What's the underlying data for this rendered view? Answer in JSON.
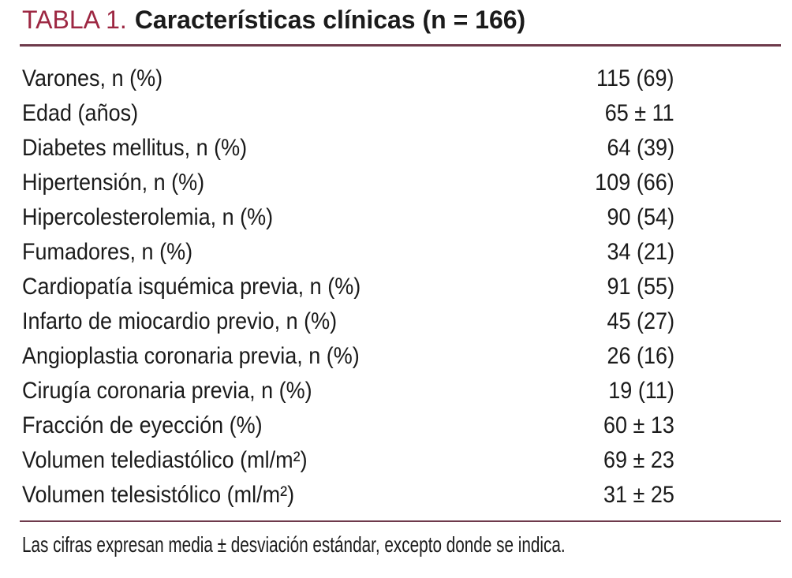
{
  "title": {
    "label": "TABLA 1.",
    "text": "Características clínicas (n = 166)"
  },
  "table": {
    "rows": [
      {
        "label": "Varones, n (%)",
        "value": "115 (69)"
      },
      {
        "label": "Edad (años)",
        "value": "65 ± 11"
      },
      {
        "label": "Diabetes mellitus, n (%)",
        "value": "64 (39)"
      },
      {
        "label": "Hipertensión, n (%)",
        "value": "109 (66)"
      },
      {
        "label": "Hipercolesterolemia, n (%)",
        "value": "90 (54)"
      },
      {
        "label": "Fumadores, n (%)",
        "value": "34 (21)"
      },
      {
        "label": "Cardiopatía isquémica previa, n (%)",
        "value": "91 (55)"
      },
      {
        "label": "Infarto de miocardio previo, n (%)",
        "value": "45 (27)"
      },
      {
        "label": "Angioplastia coronaria previa, n (%)",
        "value": "26 (16)"
      },
      {
        "label": "Cirugía coronaria previa, n (%)",
        "value": "19 (11)"
      },
      {
        "label": "Fracción de eyección (%)",
        "value": "60 ± 13"
      },
      {
        "label": "Volumen telediastólico (ml/m²)",
        "value": "69 ± 23"
      },
      {
        "label": "Volumen telesistólico (ml/m²)",
        "value": "31 ± 25"
      }
    ]
  },
  "footnote": "Las cifras expresan media ± desviación estándar, excepto donde se indica.",
  "colors": {
    "accent_red": "#9d2742",
    "rule": "#6e3a4b",
    "text": "#1b1b1b",
    "background": "#ffffff"
  }
}
